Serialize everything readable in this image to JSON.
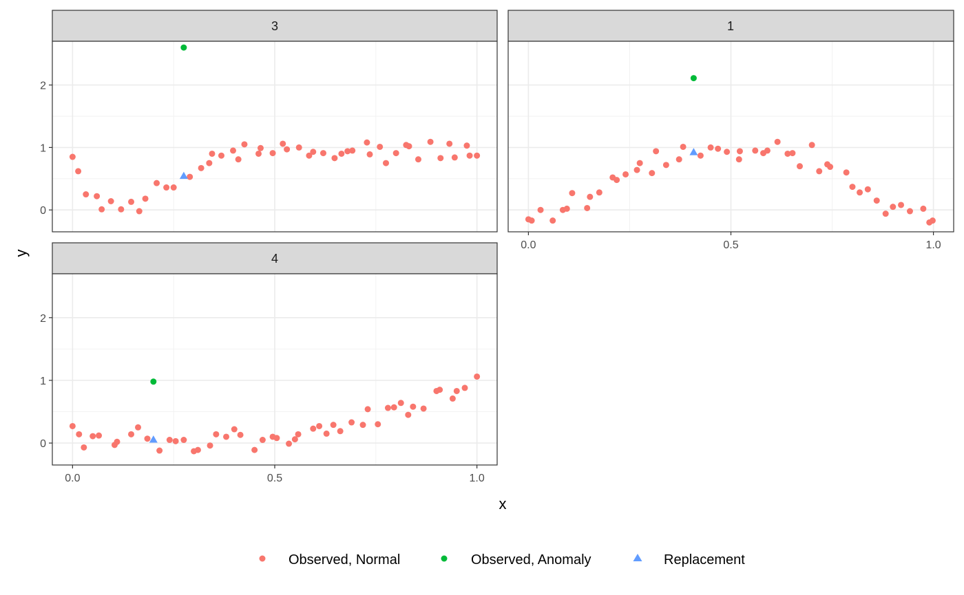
{
  "chart_data": {
    "type": "scatter",
    "xlabel": "x",
    "ylabel": "y",
    "xlim": [
      -0.05,
      1.05
    ],
    "ylim": [
      -0.35,
      2.7
    ],
    "x_ticks": [
      {
        "value": 0,
        "label": "0.0"
      },
      {
        "value": 0.5,
        "label": "0.5"
      },
      {
        "value": 1,
        "label": "1.0"
      }
    ],
    "y_ticks": [
      {
        "value": 0,
        "label": "0"
      },
      {
        "value": 1,
        "label": "1"
      },
      {
        "value": 2,
        "label": "2"
      }
    ],
    "grid": true,
    "legend_position": "bottom",
    "legend": [
      {
        "key": "normal",
        "label": "Observed, Normal",
        "color": "#F8766D",
        "shape": "circle"
      },
      {
        "key": "anomaly",
        "label": "Observed, Anomaly",
        "color": "#00BA38",
        "shape": "circle"
      },
      {
        "key": "replacement",
        "label": "Replacement",
        "color": "#619CFF",
        "shape": "triangle"
      }
    ],
    "panels": [
      {
        "label": "3",
        "normal": [
          [
            0.0,
            0.85
          ],
          [
            0.014,
            0.62
          ],
          [
            0.033,
            0.25
          ],
          [
            0.06,
            0.22
          ],
          [
            0.072,
            0.01
          ],
          [
            0.095,
            0.14
          ],
          [
            0.12,
            0.01
          ],
          [
            0.145,
            0.13
          ],
          [
            0.165,
            -0.02
          ],
          [
            0.18,
            0.18
          ],
          [
            0.208,
            0.43
          ],
          [
            0.232,
            0.36
          ],
          [
            0.25,
            0.36
          ],
          [
            0.29,
            0.53
          ],
          [
            0.318,
            0.67
          ],
          [
            0.338,
            0.75
          ],
          [
            0.345,
            0.9
          ],
          [
            0.368,
            0.87
          ],
          [
            0.397,
            0.95
          ],
          [
            0.41,
            0.81
          ],
          [
            0.425,
            1.05
          ],
          [
            0.46,
            0.9
          ],
          [
            0.465,
            0.99
          ],
          [
            0.495,
            0.91
          ],
          [
            0.52,
            1.06
          ],
          [
            0.53,
            0.97
          ],
          [
            0.56,
            1.0
          ],
          [
            0.585,
            0.87
          ],
          [
            0.595,
            0.93
          ],
          [
            0.62,
            0.91
          ],
          [
            0.648,
            0.83
          ],
          [
            0.665,
            0.9
          ],
          [
            0.68,
            0.94
          ],
          [
            0.692,
            0.95
          ],
          [
            0.728,
            1.08
          ],
          [
            0.735,
            0.89
          ],
          [
            0.76,
            1.01
          ],
          [
            0.775,
            0.75
          ],
          [
            0.8,
            0.91
          ],
          [
            0.825,
            1.04
          ],
          [
            0.832,
            1.02
          ],
          [
            0.855,
            0.81
          ],
          [
            0.885,
            1.09
          ],
          [
            0.91,
            0.83
          ],
          [
            0.932,
            1.06
          ],
          [
            0.945,
            0.84
          ],
          [
            0.975,
            1.03
          ],
          [
            0.982,
            0.87
          ],
          [
            1.0,
            0.87
          ]
        ],
        "anomaly": [
          [
            0.275,
            2.6
          ]
        ],
        "replacement": [
          [
            0.275,
            0.54
          ]
        ]
      },
      {
        "label": "1",
        "normal": [
          [
            0.0,
            -0.15
          ],
          [
            0.008,
            -0.17
          ],
          [
            0.03,
            0.0
          ],
          [
            0.06,
            -0.17
          ],
          [
            0.085,
            0.0
          ],
          [
            0.095,
            0.02
          ],
          [
            0.108,
            0.27
          ],
          [
            0.145,
            0.03
          ],
          [
            0.152,
            0.21
          ],
          [
            0.175,
            0.28
          ],
          [
            0.208,
            0.52
          ],
          [
            0.218,
            0.48
          ],
          [
            0.24,
            0.57
          ],
          [
            0.268,
            0.64
          ],
          [
            0.275,
            0.75
          ],
          [
            0.305,
            0.59
          ],
          [
            0.315,
            0.94
          ],
          [
            0.34,
            0.72
          ],
          [
            0.372,
            0.81
          ],
          [
            0.382,
            1.01
          ],
          [
            0.425,
            0.87
          ],
          [
            0.45,
            1.0
          ],
          [
            0.468,
            0.98
          ],
          [
            0.49,
            0.93
          ],
          [
            0.52,
            0.81
          ],
          [
            0.522,
            0.94
          ],
          [
            0.56,
            0.95
          ],
          [
            0.58,
            0.91
          ],
          [
            0.59,
            0.95
          ],
          [
            0.615,
            1.09
          ],
          [
            0.64,
            0.9
          ],
          [
            0.652,
            0.91
          ],
          [
            0.67,
            0.7
          ],
          [
            0.7,
            1.04
          ],
          [
            0.718,
            0.62
          ],
          [
            0.738,
            0.73
          ],
          [
            0.745,
            0.69
          ],
          [
            0.785,
            0.6
          ],
          [
            0.8,
            0.37
          ],
          [
            0.818,
            0.28
          ],
          [
            0.838,
            0.33
          ],
          [
            0.86,
            0.15
          ],
          [
            0.882,
            -0.06
          ],
          [
            0.9,
            0.05
          ],
          [
            0.92,
            0.08
          ],
          [
            0.942,
            -0.02
          ],
          [
            0.975,
            0.02
          ],
          [
            0.99,
            -0.2
          ],
          [
            0.998,
            -0.17
          ]
        ],
        "anomaly": [
          [
            0.408,
            2.11
          ]
        ],
        "replacement": [
          [
            0.408,
            0.92
          ]
        ]
      },
      {
        "label": "4",
        "normal": [
          [
            0.0,
            0.27
          ],
          [
            0.016,
            0.14
          ],
          [
            0.028,
            -0.07
          ],
          [
            0.05,
            0.11
          ],
          [
            0.065,
            0.12
          ],
          [
            0.104,
            -0.03
          ],
          [
            0.11,
            0.02
          ],
          [
            0.145,
            0.14
          ],
          [
            0.162,
            0.25
          ],
          [
            0.185,
            0.07
          ],
          [
            0.215,
            -0.12
          ],
          [
            0.24,
            0.05
          ],
          [
            0.255,
            0.03
          ],
          [
            0.275,
            0.05
          ],
          [
            0.3,
            -0.13
          ],
          [
            0.31,
            -0.11
          ],
          [
            0.34,
            -0.04
          ],
          [
            0.355,
            0.14
          ],
          [
            0.38,
            0.1
          ],
          [
            0.4,
            0.22
          ],
          [
            0.415,
            0.13
          ],
          [
            0.45,
            -0.11
          ],
          [
            0.47,
            0.05
          ],
          [
            0.495,
            0.1
          ],
          [
            0.505,
            0.08
          ],
          [
            0.535,
            -0.01
          ],
          [
            0.55,
            0.06
          ],
          [
            0.558,
            0.14
          ],
          [
            0.595,
            0.23
          ],
          [
            0.61,
            0.27
          ],
          [
            0.628,
            0.15
          ],
          [
            0.645,
            0.29
          ],
          [
            0.662,
            0.19
          ],
          [
            0.69,
            0.33
          ],
          [
            0.718,
            0.29
          ],
          [
            0.73,
            0.54
          ],
          [
            0.755,
            0.3
          ],
          [
            0.78,
            0.56
          ],
          [
            0.795,
            0.57
          ],
          [
            0.812,
            0.64
          ],
          [
            0.83,
            0.45
          ],
          [
            0.842,
            0.58
          ],
          [
            0.868,
            0.55
          ],
          [
            0.9,
            0.83
          ],
          [
            0.908,
            0.85
          ],
          [
            0.94,
            0.71
          ],
          [
            0.95,
            0.83
          ],
          [
            0.97,
            0.88
          ],
          [
            1.0,
            1.06
          ]
        ],
        "anomaly": [
          [
            0.2,
            0.98
          ]
        ],
        "replacement": [
          [
            0.2,
            0.05
          ]
        ]
      }
    ]
  }
}
